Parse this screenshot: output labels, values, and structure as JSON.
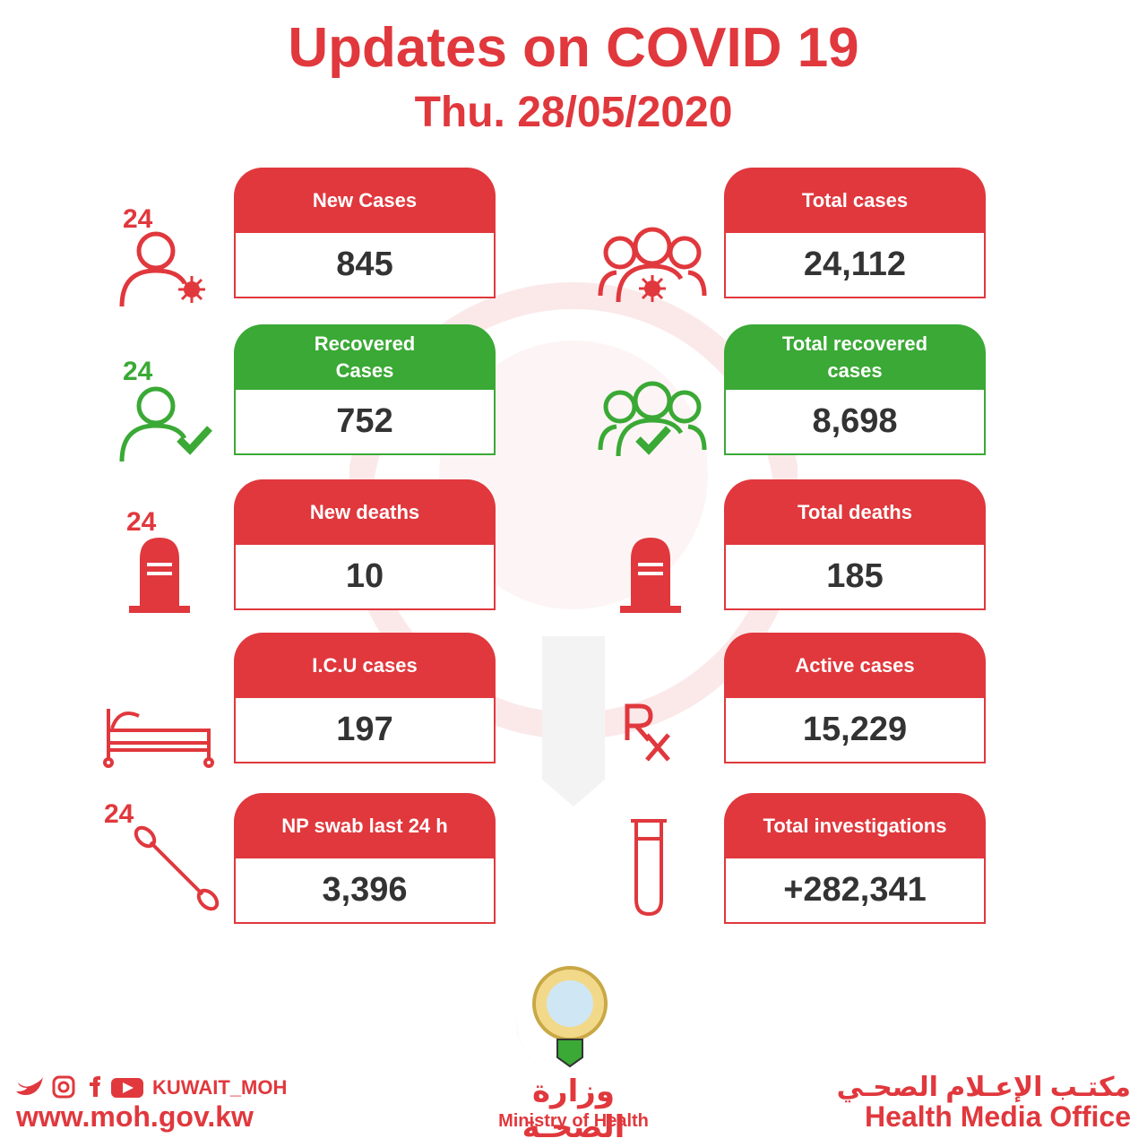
{
  "header": {
    "title": "Updates on COVID 19",
    "date": "Thu. 28/05/2020"
  },
  "cards": [
    {
      "label": [
        "New Cases"
      ],
      "value": "845",
      "badge": "24"
    },
    {
      "label": [
        "Total cases"
      ],
      "value": "24,112"
    },
    {
      "label": [
        "Recovered",
        "Cases"
      ],
      "value": "752",
      "badge": "24"
    },
    {
      "label": [
        "Total recovered",
        "cases"
      ],
      "value": "8,698"
    },
    {
      "label": [
        "New deaths"
      ],
      "value": "10",
      "badge": "24"
    },
    {
      "label": [
        "Total deaths"
      ],
      "value": "185"
    },
    {
      "label": [
        "I.C.U cases"
      ],
      "value": "197"
    },
    {
      "label": [
        "Active cases"
      ],
      "value": "15,229"
    },
    {
      "label": [
        "NP swab last 24 h"
      ],
      "value": "3,396",
      "badge": "24"
    },
    {
      "label": [
        "Total investigations"
      ],
      "value": "+282,341"
    }
  ],
  "footer": {
    "handle": "KUWAIT_MOH",
    "website": "www.moh.gov.kw",
    "ministry_ar": "وزارة الصحـة",
    "ministry_en": "Ministry of Health",
    "office_ar": "مكتـب الإعـلام الصحـي",
    "office_en": "Health Media Office"
  }
}
